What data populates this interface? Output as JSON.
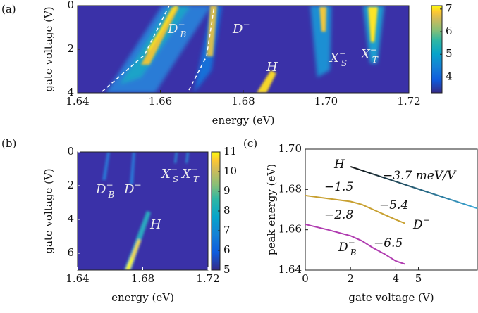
{
  "chart_data": [
    {
      "type": "heatmap",
      "panel_label": "(a)",
      "xlabel": "energy (eV)",
      "ylabel": "gate voltage (V)",
      "xlim": [
        1.64,
        1.72
      ],
      "xticks": [
        1.64,
        1.66,
        1.68,
        {
          "value": 1.7,
          "label": "1.70"
        },
        1.72
      ],
      "ylim": [
        4,
        0
      ],
      "yticks": [
        0,
        2,
        4
      ],
      "colorbar": {
        "lim": [
          3.3,
          7.15
        ],
        "ticks": [
          4,
          5,
          6,
          7
        ]
      },
      "annotations": [
        {
          "text": "D",
          "sub": "B",
          "sup": "−"
        },
        {
          "text": "D",
          "sup": "−"
        },
        {
          "text": "H"
        },
        {
          "text": "X",
          "sub": "S",
          "sup": "−"
        },
        {
          "text": "X",
          "sub": "T",
          "sup": "−"
        }
      ]
    },
    {
      "type": "heatmap",
      "panel_label": "(b)",
      "xlabel": "energy (eV)",
      "ylabel": "gate voltage (V)",
      "xlim": [
        1.64,
        1.72
      ],
      "xticks": [
        1.64,
        1.68,
        1.72
      ],
      "ylim": [
        7,
        0
      ],
      "yticks": [
        0,
        2,
        4,
        6
      ],
      "colorbar": {
        "lim": [
          5,
          11
        ],
        "ticks": [
          5,
          6,
          7,
          8,
          9,
          10,
          11
        ]
      },
      "annotations": [
        {
          "text": "D",
          "sub": "B",
          "sup": "−"
        },
        {
          "text": "D",
          "sup": "−"
        },
        {
          "text": "X",
          "sub": "S",
          "sup": "−"
        },
        {
          "text": "X",
          "sub": "T",
          "sup": "−"
        },
        {
          "text": "H"
        }
      ]
    },
    {
      "type": "line",
      "panel_label": "(c)",
      "xlabel": "gate voltage (V)",
      "ylabel": "peak energy (eV)",
      "xlim": [
        0,
        7.6
      ],
      "xticks": [
        0,
        2,
        4,
        5
      ],
      "ylim": [
        1.64,
        1.7
      ],
      "yticks": [
        1.64,
        1.66,
        1.68,
        {
          "value": 1.7,
          "label": "1.70"
        }
      ],
      "series": [
        {
          "name": "H",
          "color": "#3aa8d8",
          "x": [
            2,
            3,
            4,
            5,
            6,
            7,
            7.6
          ],
          "values": [
            1.6913,
            1.6876,
            1.6839,
            1.6802,
            1.6765,
            1.6728,
            1.6706
          ]
        },
        {
          "name": "D−",
          "color": "#c8a030",
          "x": [
            0,
            1,
            2,
            2.5,
            3,
            3.5,
            4,
            4.4
          ],
          "values": [
            1.677,
            1.6755,
            1.674,
            1.6725,
            1.67,
            1.6675,
            1.665,
            1.6632
          ]
        },
        {
          "name": "D_B−",
          "color": "#b03cb0",
          "x": [
            0,
            1,
            2,
            2.5,
            3,
            3.5,
            4,
            4.4
          ],
          "values": [
            1.6627,
            1.66,
            1.657,
            1.6545,
            1.651,
            1.648,
            1.6445,
            1.643
          ]
        }
      ],
      "annotations": [
        {
          "text": "H"
        },
        {
          "text": "−3.7 meV/V"
        },
        {
          "text": "−1.5"
        },
        {
          "text": "−5.4"
        },
        {
          "text": "D",
          "sup": "−"
        },
        {
          "text": "−2.8"
        },
        {
          "text": "−6.5"
        },
        {
          "text": "D",
          "sub": "B",
          "sup": "−"
        }
      ]
    }
  ]
}
